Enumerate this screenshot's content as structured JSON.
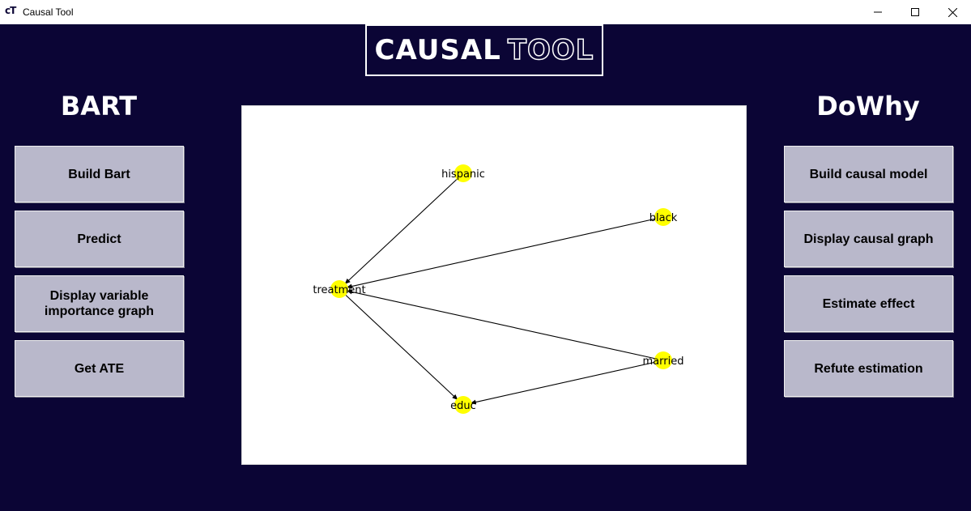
{
  "window": {
    "icon_text": "cT",
    "title": "Causal Tool",
    "minimize_glyph": "—",
    "maximize_glyph": "☐",
    "close_glyph": "✕"
  },
  "logo": {
    "solid": "CAUSAL",
    "outline": "TOOL"
  },
  "bart": {
    "heading": "BART",
    "buttons": [
      {
        "label": "Build Bart"
      },
      {
        "label": "Predict"
      },
      {
        "label": "Display variable importance graph"
      },
      {
        "label": "Get ATE"
      }
    ]
  },
  "dowhy": {
    "heading": "DoWhy",
    "buttons": [
      {
        "label": "Build causal model"
      },
      {
        "label": "Display causal graph"
      },
      {
        "label": "Estimate effect"
      },
      {
        "label": "Refute estimation"
      }
    ]
  },
  "graph": {
    "node_color": "#ffff00",
    "edge_color": "#000000",
    "nodes": [
      {
        "id": "hispanic",
        "label": "hispanic"
      },
      {
        "id": "black",
        "label": "black"
      },
      {
        "id": "treatment",
        "label": "treatment"
      },
      {
        "id": "married",
        "label": "married"
      },
      {
        "id": "educ",
        "label": "educ"
      }
    ],
    "edges": [
      {
        "from": "hispanic",
        "to": "treatment"
      },
      {
        "from": "black",
        "to": "treatment"
      },
      {
        "from": "married",
        "to": "treatment"
      },
      {
        "from": "treatment",
        "to": "educ"
      },
      {
        "from": "married",
        "to": "educ"
      }
    ]
  },
  "colors": {
    "background": "#0b0535",
    "button": "#b9b8cb",
    "logo_border": "#ffffff"
  }
}
